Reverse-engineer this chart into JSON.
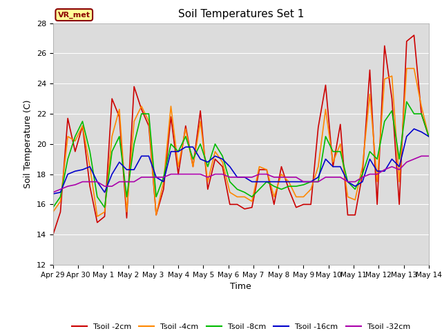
{
  "title": "Soil Temperatures Set 1",
  "xlabel": "Time",
  "ylabel": "Soil Temperature (C)",
  "ylim": [
    12,
    28
  ],
  "xlim": [
    0,
    15
  ],
  "figure_bg": "#ffffff",
  "plot_bg_color": "#dcdcdc",
  "grid_color": "#ffffff",
  "annotation_text": "VR_met",
  "annotation_bg": "#ffff99",
  "annotation_border": "#8B0000",
  "annotation_text_color": "#8B0000",
  "series": [
    {
      "label": "Tsoil -2cm",
      "color": "#cc0000",
      "lw": 1.2
    },
    {
      "label": "Tsoil -4cm",
      "color": "#ff8800",
      "lw": 1.2
    },
    {
      "label": "Tsoil -8cm",
      "color": "#00bb00",
      "lw": 1.2
    },
    {
      "label": "Tsoil -16cm",
      "color": "#0000cc",
      "lw": 1.2
    },
    {
      "label": "Tsoil -32cm",
      "color": "#aa00aa",
      "lw": 1.2
    }
  ],
  "xtick_labels": [
    "Apr 29",
    "Apr 30",
    "May 1",
    "May 2",
    "May 3",
    "May 4",
    "May 5",
    "May 6",
    "May 7",
    "May 8",
    "May 9",
    "May 10",
    "May 11",
    "May 12",
    "May 13",
    "May 14"
  ],
  "ytick_vals": [
    12,
    14,
    16,
    18,
    20,
    22,
    24,
    26,
    28
  ],
  "tsoil_2cm": [
    14.0,
    15.5,
    21.7,
    19.5,
    21.2,
    17.2,
    14.8,
    15.2,
    23.0,
    21.8,
    15.1,
    23.8,
    22.3,
    21.2,
    15.3,
    17.0,
    21.8,
    18.0,
    21.2,
    18.5,
    22.2,
    17.0,
    19.0,
    18.5,
    16.0,
    16.0,
    15.7,
    15.8,
    18.3,
    18.3,
    16.0,
    18.5,
    17.0,
    15.8,
    16.0,
    16.0,
    21.1,
    23.9,
    18.5,
    21.3,
    15.3,
    15.3,
    18.0,
    24.9,
    16.0,
    26.5,
    23.0,
    16.0,
    26.8,
    27.2,
    22.0,
    20.5
  ],
  "tsoil_4cm": [
    15.5,
    16.2,
    20.5,
    20.2,
    21.2,
    18.5,
    15.2,
    15.5,
    20.5,
    22.3,
    15.5,
    21.5,
    22.5,
    21.5,
    15.3,
    17.5,
    22.5,
    18.5,
    21.0,
    18.5,
    21.5,
    17.5,
    19.5,
    18.8,
    16.8,
    16.5,
    16.5,
    16.2,
    18.5,
    18.3,
    16.5,
    18.0,
    17.5,
    16.5,
    16.5,
    17.0,
    18.5,
    22.3,
    18.8,
    20.0,
    16.5,
    16.3,
    18.5,
    23.3,
    17.5,
    24.3,
    24.5,
    17.5,
    25.0,
    25.0,
    22.5,
    20.5
  ],
  "tsoil_8cm": [
    15.8,
    16.5,
    19.0,
    20.5,
    21.5,
    19.5,
    16.5,
    15.8,
    19.5,
    20.5,
    16.5,
    20.0,
    22.0,
    22.0,
    16.5,
    17.8,
    20.0,
    19.5,
    20.5,
    19.0,
    20.0,
    18.5,
    20.0,
    19.2,
    17.5,
    17.0,
    16.8,
    16.5,
    17.0,
    17.5,
    17.2,
    17.0,
    17.2,
    17.2,
    17.3,
    17.5,
    17.5,
    20.5,
    19.5,
    19.5,
    17.5,
    17.0,
    18.0,
    19.5,
    19.0,
    21.5,
    22.2,
    19.0,
    22.8,
    22.0,
    22.0,
    20.5
  ],
  "tsoil_16cm": [
    16.7,
    16.8,
    18.0,
    18.2,
    18.3,
    18.5,
    17.5,
    16.8,
    18.0,
    18.8,
    18.3,
    18.3,
    19.2,
    19.2,
    17.8,
    17.5,
    19.5,
    19.5,
    19.8,
    19.8,
    19.0,
    18.8,
    19.2,
    19.0,
    18.5,
    17.8,
    17.8,
    17.5,
    17.5,
    17.5,
    17.5,
    17.5,
    17.5,
    17.5,
    17.5,
    17.5,
    17.8,
    19.0,
    18.5,
    18.5,
    17.5,
    17.2,
    17.5,
    19.0,
    18.2,
    18.2,
    19.0,
    18.5,
    20.5,
    21.0,
    20.8,
    20.5
  ],
  "tsoil_32cm": [
    16.8,
    17.0,
    17.2,
    17.3,
    17.5,
    17.5,
    17.5,
    17.2,
    17.2,
    17.5,
    17.5,
    17.5,
    17.8,
    17.8,
    17.8,
    17.8,
    18.0,
    18.0,
    18.0,
    18.0,
    18.0,
    17.8,
    18.0,
    18.0,
    17.8,
    17.8,
    17.8,
    17.8,
    18.0,
    18.0,
    17.8,
    17.8,
    17.8,
    17.8,
    17.5,
    17.5,
    17.5,
    17.8,
    17.8,
    17.8,
    17.5,
    17.5,
    17.8,
    18.0,
    18.0,
    18.3,
    18.5,
    18.3,
    18.8,
    19.0,
    19.2,
    19.2
  ]
}
